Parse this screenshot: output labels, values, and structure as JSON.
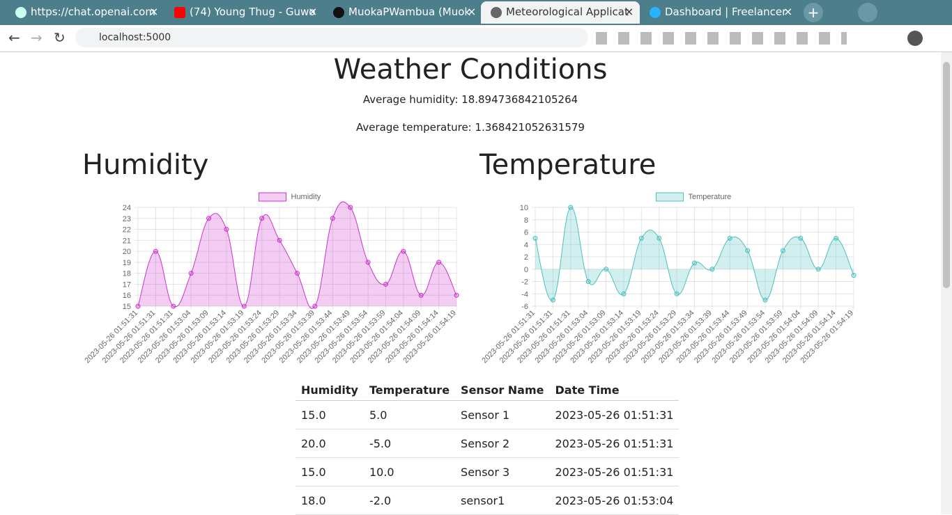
{
  "browser": {
    "tabs": [
      "https://chat.openai.com",
      "(74) Young Thug - Guwo",
      "MuokaPWambua (Muok",
      "Meteorological Applicat",
      "Dashboard | Freelancer"
    ],
    "url": "localhost:5000"
  },
  "header": {
    "title": "Weather Conditions",
    "averages": [
      "Average humidity: 18.894736842105264",
      "Average temperature: 1.368421052631579"
    ]
  },
  "chart_data": [
    {
      "type": "line",
      "title": "Humidity",
      "categories": [
        "2023-05-26 01:51:31",
        "2023-05-26 01:51:31",
        "2023-05-26 01:51:31",
        "2023-05-26 01:53:04",
        "2023-05-26 01:53:09",
        "2023-05-26 01:53:14",
        "2023-05-26 01:53:19",
        "2023-05-26 01:53:24",
        "2023-05-26 01:53:29",
        "2023-05-26 01:53:34",
        "2023-05-26 01:53:39",
        "2023-05-26 01:53:44",
        "2023-05-26 01:53:49",
        "2023-05-26 01:53:54",
        "2023-05-26 01:53:59",
        "2023-05-26 01:54:04",
        "2023-05-26 01:54:09",
        "2023-05-26 01:54:14",
        "2023-05-26 01:54:19"
      ],
      "series": [
        {
          "name": "Humidity",
          "color": "#cc33cc",
          "values": [
            15,
            20,
            15,
            18,
            23,
            22,
            15,
            23,
            21,
            18,
            15,
            23,
            24,
            19,
            17,
            20,
            16,
            19,
            16
          ]
        }
      ],
      "ylim": [
        15,
        24
      ],
      "yticks": [
        15,
        16,
        17,
        18,
        19,
        20,
        21,
        22,
        23,
        24
      ],
      "grid": true,
      "fill": true,
      "legend": "top"
    },
    {
      "type": "line",
      "title": "Temperature",
      "categories": [
        "2023-05-26 01:51:31",
        "2023-05-26 01:51:31",
        "2023-05-26 01:51:31",
        "2023-05-26 01:53:04",
        "2023-05-26 01:53:09",
        "2023-05-26 01:53:14",
        "2023-05-26 01:53:19",
        "2023-05-26 01:53:24",
        "2023-05-26 01:53:29",
        "2023-05-26 01:53:34",
        "2023-05-26 01:53:39",
        "2023-05-26 01:53:44",
        "2023-05-26 01:53:49",
        "2023-05-26 01:53:54",
        "2023-05-26 01:53:59",
        "2023-05-26 01:54:04",
        "2023-05-26 01:54:09",
        "2023-05-26 01:54:14",
        "2023-05-26 01:54:19"
      ],
      "series": [
        {
          "name": "Temperature",
          "color": "#4bc0c0",
          "values": [
            5,
            -5,
            10,
            -2,
            0,
            -4,
            5,
            5,
            -4,
            1,
            0,
            5,
            3,
            -5,
            3,
            5,
            0,
            5,
            -1
          ]
        }
      ],
      "ylim": [
        -6,
        10
      ],
      "yticks": [
        -6,
        -4,
        -2,
        0,
        2,
        4,
        6,
        8,
        10
      ],
      "grid": true,
      "fill": true,
      "legend": "top"
    }
  ],
  "table": {
    "header": [
      "Humidity",
      "Temperature",
      "Sensor Name",
      "Date Time"
    ],
    "rows": [
      [
        "15.0",
        "5.0",
        "Sensor 1",
        "2023-05-26 01:51:31"
      ],
      [
        "20.0",
        "-5.0",
        "Sensor 2",
        "2023-05-26 01:51:31"
      ],
      [
        "15.0",
        "10.0",
        "Sensor 3",
        "2023-05-26 01:51:31"
      ],
      [
        "18.0",
        "-2.0",
        "sensor1",
        "2023-05-26 01:53:04"
      ]
    ]
  }
}
